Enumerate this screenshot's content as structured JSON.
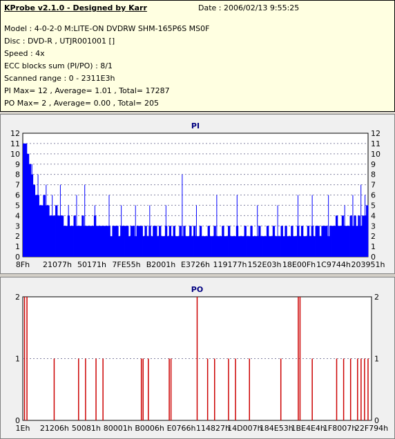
{
  "header": {
    "title": "KProbe v2.1.0 - Designed by Karr",
    "date": "Date : 2006/02/13 9:55:25",
    "model": "Model : 4-0-2-0 M:LITE-ON DVDRW SHM-165P6S MS0F",
    "disc": "Disc : DVD-R , UTJR001001 []",
    "speed": "Speed : 4x",
    "ecc": "ECC blocks sum (PI/PO) : 8/1",
    "range": "Scanned range : 0 - 2311E3h",
    "pi_stats": "PI Max= 12 , Average= 1.01 , Total= 17287",
    "po_stats": "PO Max= 2 , Average= 0.00 , Total= 205"
  },
  "chart_data": [
    {
      "type": "bar",
      "title": "PI",
      "color": "#0000ff",
      "ylim": [
        0,
        12
      ],
      "yticks": [
        "0",
        "1",
        "2",
        "3",
        "4",
        "5",
        "6",
        "7",
        "8",
        "9",
        "10",
        "11",
        "12"
      ],
      "xticks": [
        "8Fh",
        "21077h",
        "50171h",
        "7FE55h",
        "B2001h",
        "E3726h",
        "119177h",
        "152E03h",
        "18E00Fh",
        "1C9744h",
        "203951h"
      ],
      "grid": true,
      "values": [
        11,
        11,
        10,
        9,
        8,
        7,
        6,
        6,
        5,
        5,
        6,
        5,
        5,
        4,
        4,
        4,
        5,
        4,
        4,
        4,
        3,
        3,
        4,
        3,
        3,
        4,
        3,
        3,
        3,
        4,
        3,
        3,
        3,
        3,
        3,
        4,
        3,
        3,
        3,
        3,
        3,
        3,
        3,
        2,
        3,
        3,
        3,
        2,
        3,
        3,
        3,
        3,
        2,
        3,
        3,
        2,
        3,
        3,
        3,
        2,
        3,
        2,
        3,
        2,
        3,
        3,
        2,
        3,
        2,
        2,
        3,
        2,
        3,
        2,
        3,
        2,
        2,
        3,
        2,
        3,
        2,
        2,
        3,
        2,
        3,
        2,
        2,
        3,
        2,
        2,
        2,
        3,
        2,
        2,
        3,
        2,
        2,
        2,
        3,
        2,
        2,
        3,
        2,
        2,
        2,
        3,
        2,
        2,
        2,
        3,
        2,
        2,
        3,
        2,
        2,
        2,
        3,
        2,
        2,
        2,
        3,
        2,
        2,
        3,
        2,
        2,
        2,
        3,
        2,
        3,
        2,
        2,
        3,
        2,
        2,
        3,
        2,
        3,
        2,
        2,
        3,
        2,
        3,
        2,
        3,
        3,
        2,
        3,
        3,
        3,
        2,
        3,
        3,
        3,
        4,
        3,
        3,
        4,
        3,
        3,
        3,
        4,
        3,
        4,
        3,
        4,
        3,
        4,
        4,
        5
      ],
      "spikes": [
        [
          4,
          9
        ],
        [
          7,
          8
        ],
        [
          11,
          7
        ],
        [
          14,
          6
        ],
        [
          18,
          7
        ],
        [
          22,
          5
        ],
        [
          26,
          6
        ],
        [
          30,
          7
        ],
        [
          35,
          5
        ],
        [
          42,
          6
        ],
        [
          48,
          5
        ],
        [
          55,
          5
        ],
        [
          62,
          5
        ],
        [
          70,
          5
        ],
        [
          78,
          8
        ],
        [
          85,
          5
        ],
        [
          95,
          6
        ],
        [
          105,
          6
        ],
        [
          115,
          5
        ],
        [
          125,
          5
        ],
        [
          135,
          6
        ],
        [
          142,
          6
        ],
        [
          150,
          6
        ],
        [
          158,
          5
        ],
        [
          162,
          6
        ],
        [
          166,
          7
        ],
        [
          168,
          6
        ]
      ]
    },
    {
      "type": "bar",
      "title": "PO",
      "color": "#cc0000",
      "ylim": [
        0,
        2
      ],
      "yticks": [
        "0",
        "1",
        "2"
      ],
      "xticks": [
        "1Eh",
        "21206h",
        "50081h",
        "80001h",
        "B0006h",
        "E0766h",
        "114827h",
        "14D007h",
        "184E53h",
        "1BE4E4h",
        "1F8007h",
        "22F794h"
      ],
      "grid": true,
      "points": [
        [
          0.005,
          2
        ],
        [
          0.012,
          2
        ],
        [
          0.09,
          1
        ],
        [
          0.16,
          1
        ],
        [
          0.18,
          1
        ],
        [
          0.21,
          1
        ],
        [
          0.23,
          1
        ],
        [
          0.34,
          1
        ],
        [
          0.345,
          1
        ],
        [
          0.36,
          1
        ],
        [
          0.42,
          1
        ],
        [
          0.425,
          1
        ],
        [
          0.5,
          2
        ],
        [
          0.53,
          1
        ],
        [
          0.55,
          1
        ],
        [
          0.59,
          1
        ],
        [
          0.61,
          1
        ],
        [
          0.65,
          1
        ],
        [
          0.74,
          1
        ],
        [
          0.79,
          2
        ],
        [
          0.795,
          2
        ],
        [
          0.83,
          1
        ],
        [
          0.9,
          1
        ],
        [
          0.92,
          1
        ],
        [
          0.94,
          1
        ],
        [
          0.96,
          1
        ],
        [
          0.97,
          1
        ],
        [
          0.98,
          1
        ],
        [
          0.99,
          1
        ]
      ]
    }
  ]
}
